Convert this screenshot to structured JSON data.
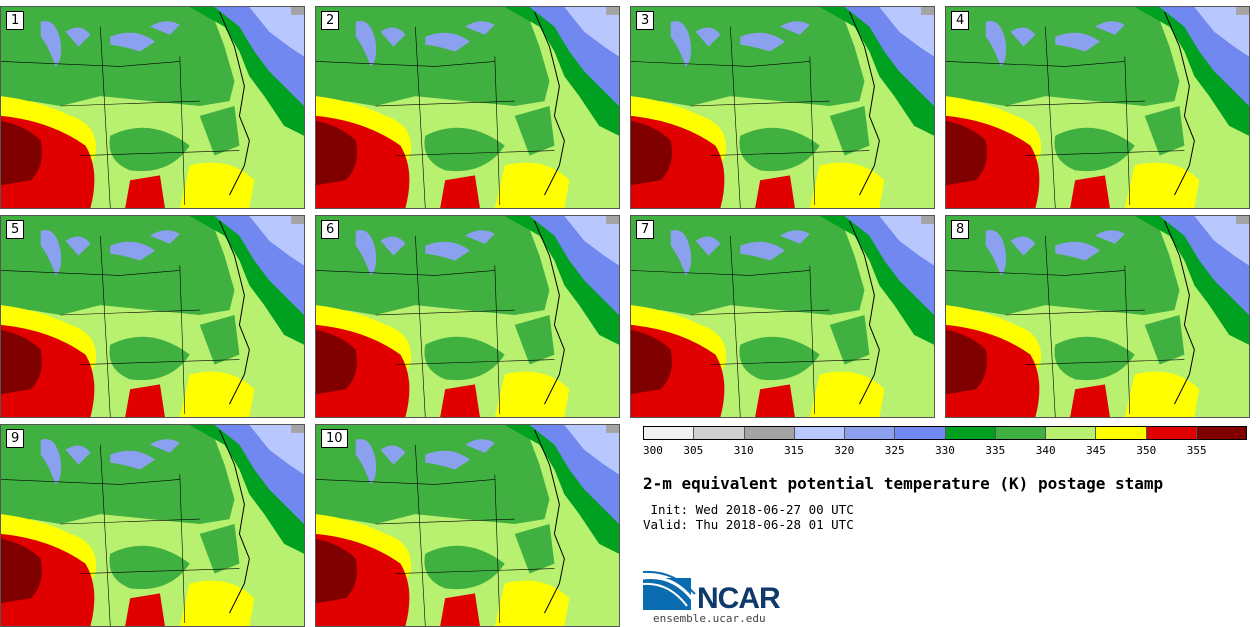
{
  "panels": [
    {
      "label": "1"
    },
    {
      "label": "2"
    },
    {
      "label": "3"
    },
    {
      "label": "4"
    },
    {
      "label": "5"
    },
    {
      "label": "6"
    },
    {
      "label": "7"
    },
    {
      "label": "8"
    },
    {
      "label": "9"
    },
    {
      "label": "10"
    }
  ],
  "colorbar": {
    "colors": [
      "#f0f0f0",
      "#d0d0d0",
      "#a4a4a4",
      "#b8c8ff",
      "#8ca0f0",
      "#7088f0",
      "#00a020",
      "#40b040",
      "#b8f070",
      "#ffff00",
      "#e00000",
      "#800000"
    ],
    "ticks": [
      "300",
      "305",
      "310",
      "315",
      "320",
      "325",
      "330",
      "335",
      "340",
      "345",
      "350",
      "355"
    ]
  },
  "title": "2-m equivalent potential temperature (K) postage stamp",
  "init_line": " Init: Wed 2018-06-27 00 UTC",
  "valid_line": "Valid: Thu 2018-06-28 01 UTC",
  "logo_text": "NCAR",
  "website": "ensemble.ucar.edu",
  "map_colors": {
    "blue_light": "#8ca0f0",
    "blue_mid": "#7088f0",
    "blue_pale": "#b8c8ff",
    "green_dark": "#00a020",
    "green_mid": "#40b040",
    "green_light": "#b8f070",
    "yellow": "#ffff00",
    "red": "#e00000",
    "dark_red": "#800000",
    "gray": "#a4a4a4"
  }
}
